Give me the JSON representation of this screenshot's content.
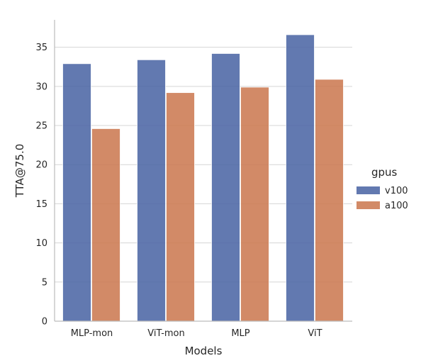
{
  "chart_data": {
    "type": "bar",
    "title": "",
    "xlabel": "Models",
    "ylabel": "TTA@75.0",
    "categories": [
      "MLP-mon",
      "ViT-mon",
      "MLP",
      "ViT"
    ],
    "series": [
      {
        "name": "v100",
        "values": [
          32.9,
          33.4,
          34.2,
          36.6
        ]
      },
      {
        "name": "a100",
        "values": [
          24.6,
          29.2,
          29.9,
          30.9
        ]
      }
    ],
    "ylim": [
      0,
      38.5
    ],
    "yticks": [
      0,
      5,
      10,
      15,
      20,
      25,
      30,
      35
    ],
    "grid": "horizontal",
    "legend": {
      "title": "gpus",
      "placement": "right"
    },
    "colors": {
      "v100": "#4c67a5",
      "a100": "#cc7a52",
      "grid": "#d5d5d5",
      "axis": "#bcbcbc"
    }
  }
}
